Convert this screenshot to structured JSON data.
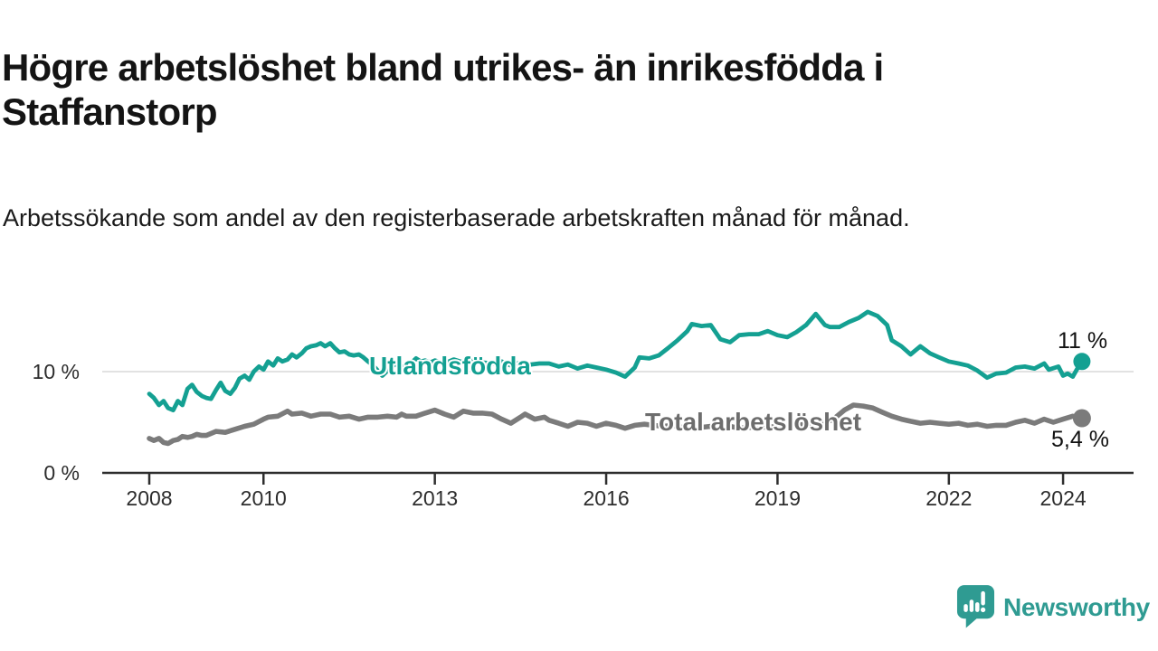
{
  "header": {
    "title": "Högre arbetslöshet bland utrikes- än inrikesfödda i Staffanstorp",
    "subtitle": "Arbetssökande som andel av den registerbaserade arbetskraften månad för månad."
  },
  "logo": {
    "text": "Newsworthy",
    "icon": "newsworthy-speech-bubble-chart-icon",
    "color": "#2f9b92"
  },
  "chart_data": {
    "type": "line",
    "title": "Högre arbetslöshet bland utrikes- än inrikesfödda i Staffanstorp",
    "xlabel": "",
    "ylabel": "Arbetssökande som andel av den registerbaserade arbetskraften",
    "x_unit": "decimal year (månad för månad)",
    "xlim": [
      2007.2,
      2025.2
    ],
    "ylim": [
      0,
      17.5
    ],
    "x_ticks": [
      2008,
      2010,
      2013,
      2016,
      2019,
      2022,
      2024
    ],
    "y_ticks": [
      {
        "value": 10,
        "label": "10 %"
      },
      {
        "value": 0,
        "label": "0 %"
      }
    ],
    "y_gridlines": [
      10
    ],
    "grid_color": "#d8d8d8",
    "axis_color": "#2d2d2d",
    "legend_position": "inline-labels-on-lines",
    "series": [
      {
        "name": "Utlandsfödda",
        "color": "#14a092",
        "label_color": "#14a092",
        "end_label": "11 %",
        "end_value": 11,
        "points": [
          [
            2008.0,
            7.8
          ],
          [
            2008.08,
            7.4
          ],
          [
            2008.17,
            6.7
          ],
          [
            2008.25,
            7.1
          ],
          [
            2008.33,
            6.4
          ],
          [
            2008.42,
            6.2
          ],
          [
            2008.5,
            7.1
          ],
          [
            2008.58,
            6.7
          ],
          [
            2008.67,
            8.3
          ],
          [
            2008.75,
            8.7
          ],
          [
            2008.83,
            8.0
          ],
          [
            2008.92,
            7.6
          ],
          [
            2009.0,
            7.4
          ],
          [
            2009.08,
            7.3
          ],
          [
            2009.17,
            8.2
          ],
          [
            2009.25,
            8.9
          ],
          [
            2009.33,
            8.1
          ],
          [
            2009.42,
            7.8
          ],
          [
            2009.5,
            8.4
          ],
          [
            2009.58,
            9.3
          ],
          [
            2009.67,
            9.6
          ],
          [
            2009.75,
            9.2
          ],
          [
            2009.83,
            10.0
          ],
          [
            2009.92,
            10.5
          ],
          [
            2010.0,
            10.2
          ],
          [
            2010.08,
            11.0
          ],
          [
            2010.17,
            10.6
          ],
          [
            2010.25,
            11.3
          ],
          [
            2010.33,
            11.0
          ],
          [
            2010.42,
            11.2
          ],
          [
            2010.5,
            11.7
          ],
          [
            2010.58,
            11.4
          ],
          [
            2010.67,
            11.8
          ],
          [
            2010.75,
            12.3
          ],
          [
            2010.83,
            12.5
          ],
          [
            2010.92,
            12.6
          ],
          [
            2011.0,
            12.8
          ],
          [
            2011.08,
            12.5
          ],
          [
            2011.17,
            12.8
          ],
          [
            2011.25,
            12.3
          ],
          [
            2011.33,
            11.9
          ],
          [
            2011.42,
            12.0
          ],
          [
            2011.5,
            11.7
          ],
          [
            2011.58,
            11.6
          ],
          [
            2011.67,
            11.7
          ],
          [
            2011.75,
            11.4
          ],
          [
            2011.83,
            11.0
          ],
          [
            2011.92,
            10.6
          ],
          [
            2012.0,
            10.1
          ],
          [
            2012.08,
            9.6
          ],
          [
            2012.17,
            10.1
          ],
          [
            2012.25,
            10.5
          ],
          [
            2012.33,
            10.8
          ],
          [
            2012.42,
            10.4
          ],
          [
            2012.5,
            10.6
          ],
          [
            2012.58,
            10.8
          ],
          [
            2012.67,
            11.3
          ],
          [
            2012.75,
            11.0
          ],
          [
            2012.83,
            11.1
          ],
          [
            2012.92,
            10.9
          ],
          [
            2013.0,
            11.1
          ],
          [
            2013.17,
            10.8
          ],
          [
            2013.33,
            11.2
          ],
          [
            2013.5,
            10.9
          ],
          [
            2013.67,
            11.1
          ],
          [
            2013.83,
            10.9
          ],
          [
            2014.0,
            10.8
          ],
          [
            2014.17,
            11.0
          ],
          [
            2014.33,
            10.6
          ],
          [
            2014.5,
            10.9
          ],
          [
            2014.67,
            10.7
          ],
          [
            2014.83,
            10.8
          ],
          [
            2015.0,
            10.8
          ],
          [
            2015.17,
            10.5
          ],
          [
            2015.33,
            10.7
          ],
          [
            2015.5,
            10.3
          ],
          [
            2015.67,
            10.6
          ],
          [
            2015.83,
            10.4
          ],
          [
            2016.0,
            10.2
          ],
          [
            2016.17,
            9.9
          ],
          [
            2016.33,
            9.5
          ],
          [
            2016.5,
            10.4
          ],
          [
            2016.58,
            11.4
          ],
          [
            2016.75,
            11.3
          ],
          [
            2016.92,
            11.6
          ],
          [
            2017.08,
            12.3
          ],
          [
            2017.25,
            13.1
          ],
          [
            2017.42,
            14.0
          ],
          [
            2017.5,
            14.7
          ],
          [
            2017.67,
            14.5
          ],
          [
            2017.83,
            14.6
          ],
          [
            2018.0,
            13.2
          ],
          [
            2018.17,
            12.9
          ],
          [
            2018.33,
            13.6
          ],
          [
            2018.5,
            13.7
          ],
          [
            2018.67,
            13.7
          ],
          [
            2018.83,
            14.0
          ],
          [
            2019.0,
            13.6
          ],
          [
            2019.17,
            13.4
          ],
          [
            2019.33,
            13.9
          ],
          [
            2019.5,
            14.6
          ],
          [
            2019.67,
            15.7
          ],
          [
            2019.83,
            14.6
          ],
          [
            2019.92,
            14.4
          ],
          [
            2020.08,
            14.4
          ],
          [
            2020.25,
            14.9
          ],
          [
            2020.42,
            15.3
          ],
          [
            2020.58,
            15.9
          ],
          [
            2020.75,
            15.5
          ],
          [
            2020.92,
            14.6
          ],
          [
            2021.0,
            13.1
          ],
          [
            2021.17,
            12.5
          ],
          [
            2021.33,
            11.7
          ],
          [
            2021.5,
            12.5
          ],
          [
            2021.67,
            11.8
          ],
          [
            2021.83,
            11.4
          ],
          [
            2022.0,
            11.0
          ],
          [
            2022.17,
            10.8
          ],
          [
            2022.33,
            10.6
          ],
          [
            2022.5,
            10.1
          ],
          [
            2022.67,
            9.4
          ],
          [
            2022.83,
            9.8
          ],
          [
            2023.0,
            9.9
          ],
          [
            2023.17,
            10.4
          ],
          [
            2023.33,
            10.5
          ],
          [
            2023.5,
            10.3
          ],
          [
            2023.67,
            10.8
          ],
          [
            2023.75,
            10.2
          ],
          [
            2023.92,
            10.5
          ],
          [
            2024.0,
            9.6
          ],
          [
            2024.08,
            9.8
          ],
          [
            2024.17,
            9.5
          ],
          [
            2024.25,
            10.3
          ],
          [
            2024.33,
            11.0
          ]
        ]
      },
      {
        "name": "Total arbetslöshet",
        "color": "#7b7b7b",
        "label_color": "#6d6d6d",
        "end_label": "5,4 %",
        "end_value": 5.4,
        "points": [
          [
            2008.0,
            3.4
          ],
          [
            2008.08,
            3.2
          ],
          [
            2008.17,
            3.4
          ],
          [
            2008.25,
            3.0
          ],
          [
            2008.33,
            2.9
          ],
          [
            2008.42,
            3.2
          ],
          [
            2008.5,
            3.3
          ],
          [
            2008.58,
            3.6
          ],
          [
            2008.67,
            3.5
          ],
          [
            2008.75,
            3.6
          ],
          [
            2008.83,
            3.8
          ],
          [
            2008.92,
            3.7
          ],
          [
            2009.0,
            3.7
          ],
          [
            2009.17,
            4.1
          ],
          [
            2009.33,
            4.0
          ],
          [
            2009.5,
            4.3
          ],
          [
            2009.67,
            4.6
          ],
          [
            2009.83,
            4.8
          ],
          [
            2010.0,
            5.3
          ],
          [
            2010.08,
            5.5
          ],
          [
            2010.25,
            5.6
          ],
          [
            2010.42,
            6.1
          ],
          [
            2010.5,
            5.8
          ],
          [
            2010.67,
            5.9
          ],
          [
            2010.83,
            5.6
          ],
          [
            2011.0,
            5.8
          ],
          [
            2011.17,
            5.8
          ],
          [
            2011.33,
            5.5
          ],
          [
            2011.5,
            5.6
          ],
          [
            2011.67,
            5.3
          ],
          [
            2011.83,
            5.5
          ],
          [
            2012.0,
            5.5
          ],
          [
            2012.17,
            5.6
          ],
          [
            2012.33,
            5.5
          ],
          [
            2012.42,
            5.8
          ],
          [
            2012.5,
            5.6
          ],
          [
            2012.67,
            5.6
          ],
          [
            2012.83,
            5.9
          ],
          [
            2013.0,
            6.2
          ],
          [
            2013.17,
            5.8
          ],
          [
            2013.33,
            5.5
          ],
          [
            2013.5,
            6.1
          ],
          [
            2013.67,
            5.9
          ],
          [
            2013.83,
            5.9
          ],
          [
            2014.0,
            5.8
          ],
          [
            2014.17,
            5.3
          ],
          [
            2014.33,
            4.9
          ],
          [
            2014.5,
            5.5
          ],
          [
            2014.58,
            5.8
          ],
          [
            2014.75,
            5.3
          ],
          [
            2014.92,
            5.5
          ],
          [
            2015.0,
            5.2
          ],
          [
            2015.17,
            4.9
          ],
          [
            2015.33,
            4.6
          ],
          [
            2015.5,
            5.0
          ],
          [
            2015.67,
            4.9
          ],
          [
            2015.83,
            4.6
          ],
          [
            2016.0,
            4.9
          ],
          [
            2016.17,
            4.7
          ],
          [
            2016.33,
            4.4
          ],
          [
            2016.5,
            4.7
          ],
          [
            2016.67,
            4.8
          ],
          [
            2016.83,
            4.7
          ],
          [
            2017.0,
            4.6
          ],
          [
            2017.17,
            4.7
          ],
          [
            2017.33,
            4.5
          ],
          [
            2017.5,
            4.6
          ],
          [
            2017.67,
            4.5
          ],
          [
            2017.83,
            4.6
          ],
          [
            2018.0,
            4.5
          ],
          [
            2018.17,
            4.6
          ],
          [
            2018.33,
            4.4
          ],
          [
            2018.5,
            4.5
          ],
          [
            2018.67,
            4.4
          ],
          [
            2018.83,
            4.6
          ],
          [
            2019.0,
            4.5
          ],
          [
            2019.17,
            4.6
          ],
          [
            2019.33,
            4.7
          ],
          [
            2019.5,
            4.8
          ],
          [
            2019.67,
            4.7
          ],
          [
            2019.83,
            4.9
          ],
          [
            2020.0,
            5.4
          ],
          [
            2020.17,
            6.2
          ],
          [
            2020.33,
            6.7
          ],
          [
            2020.5,
            6.6
          ],
          [
            2020.67,
            6.4
          ],
          [
            2020.83,
            6.0
          ],
          [
            2021.0,
            5.6
          ],
          [
            2021.17,
            5.3
          ],
          [
            2021.33,
            5.1
          ],
          [
            2021.5,
            4.9
          ],
          [
            2021.67,
            5.0
          ],
          [
            2021.83,
            4.9
          ],
          [
            2022.0,
            4.8
          ],
          [
            2022.17,
            4.9
          ],
          [
            2022.33,
            4.7
          ],
          [
            2022.5,
            4.8
          ],
          [
            2022.67,
            4.6
          ],
          [
            2022.83,
            4.7
          ],
          [
            2023.0,
            4.7
          ],
          [
            2023.17,
            5.0
          ],
          [
            2023.33,
            5.2
          ],
          [
            2023.5,
            4.9
          ],
          [
            2023.67,
            5.3
          ],
          [
            2023.83,
            5.0
          ],
          [
            2024.0,
            5.3
          ],
          [
            2024.17,
            5.6
          ],
          [
            2024.33,
            5.4
          ]
        ]
      }
    ]
  }
}
